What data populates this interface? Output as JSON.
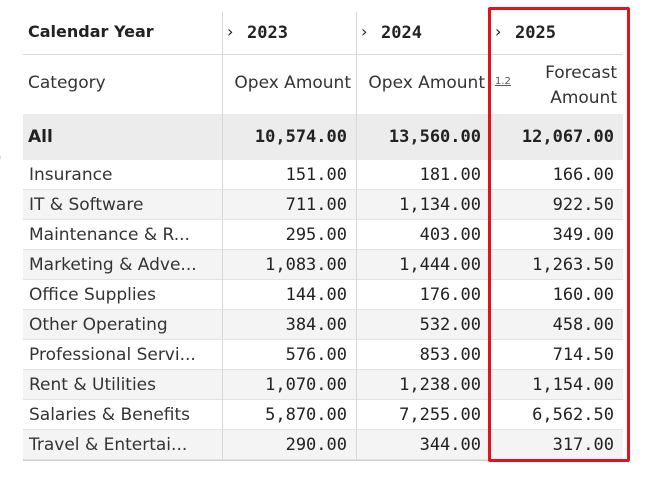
{
  "edge_glyph": ")",
  "header": {
    "calendar_label": "Calendar Year",
    "category_label": "Category",
    "chevron": "›",
    "years": [
      "2023",
      "2024",
      "2025"
    ],
    "measure_2023": "Opex Amount",
    "measure_2024": "Opex Amount",
    "measure_2025_line1": "Forecast",
    "measure_2025_line2": "Amount",
    "type_badge": "1.2"
  },
  "all_row": {
    "label": "All",
    "values": [
      "10,574.00",
      "13,560.00",
      "12,067.00"
    ]
  },
  "rows": [
    {
      "label": "Insurance",
      "values": [
        "151.00",
        "181.00",
        "166.00"
      ]
    },
    {
      "label": "IT & Software",
      "values": [
        "711.00",
        "1,134.00",
        "922.50"
      ]
    },
    {
      "label": "Maintenance & R...",
      "values": [
        "295.00",
        "403.00",
        "349.00"
      ]
    },
    {
      "label": "Marketing & Adve...",
      "values": [
        "1,083.00",
        "1,444.00",
        "1,263.50"
      ]
    },
    {
      "label": "Office Supplies",
      "values": [
        "144.00",
        "176.00",
        "160.00"
      ]
    },
    {
      "label": "Other Operating",
      "values": [
        "384.00",
        "532.00",
        "458.00"
      ]
    },
    {
      "label": "Professional Servi...",
      "values": [
        "576.00",
        "853.00",
        "714.50"
      ]
    },
    {
      "label": "Rent & Utilities",
      "values": [
        "1,070.00",
        "1,238.00",
        "1,154.00"
      ]
    },
    {
      "label": "Salaries & Benefits",
      "values": [
        "5,870.00",
        "7,255.00",
        "6,562.50"
      ]
    },
    {
      "label": "Travel & Entertai...",
      "values": [
        "290.00",
        "344.00",
        "317.00"
      ]
    }
  ],
  "colors": {
    "highlight_border": "#e3121b",
    "total_row_bg": "#ececec",
    "alt_row_bg": "#f4f4f4"
  }
}
